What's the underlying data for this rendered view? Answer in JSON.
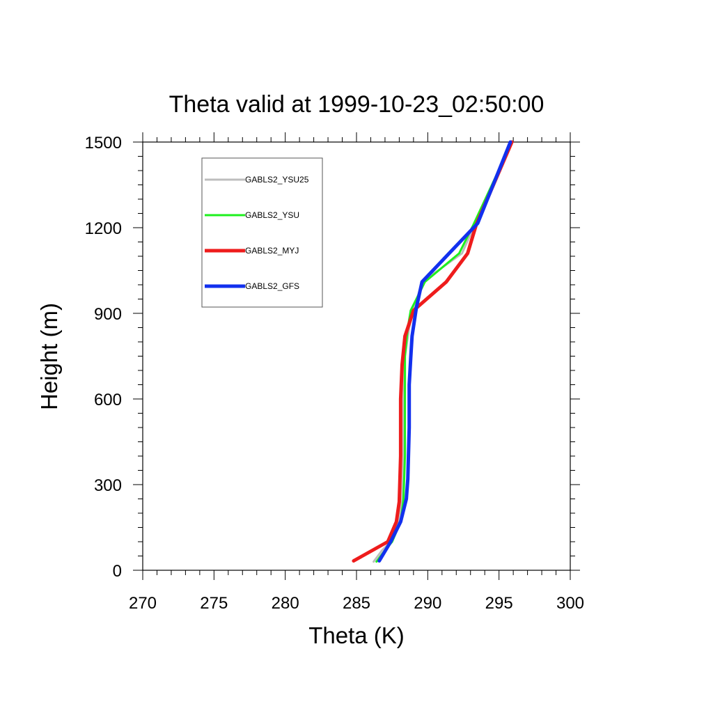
{
  "chart_data": {
    "type": "line",
    "title": "Theta valid at 1999-10-23_02:50:00",
    "xlabel": "Theta (K)",
    "ylabel": "Height (m)",
    "xlim": [
      270,
      300
    ],
    "ylim": [
      0,
      1500
    ],
    "xticks": [
      270,
      275,
      280,
      285,
      290,
      295,
      300
    ],
    "yticks": [
      0,
      300,
      600,
      900,
      1200,
      1500
    ],
    "x_tick_labels": [
      "270",
      "275",
      "280",
      "285",
      "290",
      "295",
      "300"
    ],
    "y_tick_labels": [
      "0",
      "300",
      "600",
      "900",
      "1200",
      "1500"
    ],
    "x_minor_step": 1,
    "y_minor_step": 50,
    "grid": false,
    "legend_position": "top-left",
    "series": [
      {
        "name": "GABLS2_YSU25",
        "color": "#bdbdbd",
        "line_width": 3,
        "points": [
          [
            286.2,
            30
          ],
          [
            286.8,
            70
          ],
          [
            287.4,
            100
          ],
          [
            288.0,
            170
          ],
          [
            288.2,
            250
          ],
          [
            288.3,
            400
          ],
          [
            288.3,
            600
          ],
          [
            288.4,
            750
          ],
          [
            288.7,
            850
          ],
          [
            289.0,
            910
          ],
          [
            289.6,
            1010
          ],
          [
            292.4,
            1110
          ],
          [
            293.3,
            1210
          ],
          [
            295.9,
            1500
          ]
        ]
      },
      {
        "name": "GABLS2_YSU",
        "color": "#1ef01e",
        "line_width": 3,
        "points": [
          [
            286.4,
            30
          ],
          [
            287.0,
            70
          ],
          [
            287.5,
            100
          ],
          [
            288.1,
            170
          ],
          [
            288.3,
            250
          ],
          [
            288.4,
            400
          ],
          [
            288.4,
            600
          ],
          [
            288.4,
            750
          ],
          [
            288.6,
            850
          ],
          [
            288.8,
            910
          ],
          [
            289.8,
            1010
          ],
          [
            292.2,
            1110
          ],
          [
            293.2,
            1210
          ],
          [
            295.9,
            1500
          ]
        ]
      },
      {
        "name": "GABLS2_MYJ",
        "color": "#ee1c1c",
        "line_width": 5,
        "points": [
          [
            284.8,
            33
          ],
          [
            287.2,
            100
          ],
          [
            287.8,
            170
          ],
          [
            288.0,
            240
          ],
          [
            288.1,
            400
          ],
          [
            288.1,
            600
          ],
          [
            288.2,
            720
          ],
          [
            288.4,
            820
          ],
          [
            289.0,
            910
          ],
          [
            291.3,
            1010
          ],
          [
            292.8,
            1110
          ],
          [
            293.4,
            1210
          ],
          [
            295.9,
            1500
          ]
        ]
      },
      {
        "name": "GABLS2_GFS",
        "color": "#1230ee",
        "line_width": 5,
        "points": [
          [
            286.6,
            33
          ],
          [
            287.4,
            100
          ],
          [
            288.1,
            170
          ],
          [
            288.5,
            250
          ],
          [
            288.6,
            320
          ],
          [
            288.7,
            500
          ],
          [
            288.7,
            650
          ],
          [
            288.8,
            740
          ],
          [
            288.9,
            820
          ],
          [
            289.2,
            920
          ],
          [
            289.6,
            1010
          ],
          [
            291.5,
            1110
          ],
          [
            293.5,
            1215
          ],
          [
            295.8,
            1500
          ]
        ]
      }
    ]
  }
}
